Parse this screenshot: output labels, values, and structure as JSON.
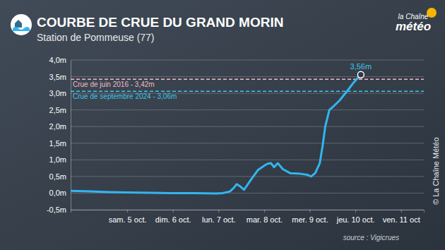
{
  "chart_data": {
    "type": "line",
    "title": "COURBE DE CRUE DU GRAND MORIN",
    "subtitle": "Station de Pommeuse (77)",
    "logo": [
      "la Chaîne",
      "météo"
    ],
    "source": "source : Vigicrues",
    "credit": "© La Chaîne Météo",
    "color": "#33b5f0",
    "grid": true,
    "x": [
      3.76,
      4.2,
      4.6,
      5.0,
      5.5,
      6.0,
      6.5,
      6.94,
      7.09,
      7.25,
      7.33,
      7.4,
      7.48,
      7.56,
      7.71,
      7.87,
      8.0,
      8.07,
      8.15,
      8.22,
      8.3,
      8.41,
      8.57,
      8.8,
      8.95,
      9.03,
      9.12,
      9.22,
      9.28,
      9.34,
      9.43,
      9.53,
      9.65,
      9.81,
      9.96,
      10.12
    ],
    "values": [
      0.07,
      0.05,
      0.03,
      0.02,
      0.01,
      0.0,
      0.0,
      -0.01,
      0.0,
      0.05,
      0.15,
      0.27,
      0.2,
      0.1,
      0.4,
      0.7,
      0.82,
      0.88,
      0.9,
      0.78,
      0.9,
      0.72,
      0.6,
      0.58,
      0.55,
      0.5,
      0.6,
      0.9,
      1.4,
      2.0,
      2.5,
      2.62,
      2.78,
      3.05,
      3.32,
      3.56
    ],
    "xlim": [
      3.76,
      11.5
    ],
    "xticks": [
      {
        "value": 5,
        "label": "sam. 5 oct."
      },
      {
        "value": 6,
        "label": "dim. 6 oct."
      },
      {
        "value": 7,
        "label": "lun. 7 oct."
      },
      {
        "value": 8,
        "label": "mar. 8 oct."
      },
      {
        "value": 9,
        "label": "mer. 9 oct."
      },
      {
        "value": 10,
        "label": "jeu. 10 oct."
      },
      {
        "value": 11,
        "label": "ven. 11 oct"
      }
    ],
    "ylim": [
      -0.5,
      4.0
    ],
    "yticks": [
      {
        "value": -0.5,
        "label": "-0,5m"
      },
      {
        "value": 0,
        "label": "0,0m"
      },
      {
        "value": 0.5,
        "label": "0,5m"
      },
      {
        "value": 1.0,
        "label": "1,0m"
      },
      {
        "value": 1.5,
        "label": "1,5m"
      },
      {
        "value": 2.0,
        "label": "2,0m"
      },
      {
        "value": 2.5,
        "label": "2,5m"
      },
      {
        "value": 3.0,
        "label": "3,0m"
      },
      {
        "value": 3.5,
        "label": "3,5m"
      },
      {
        "value": 4.0,
        "label": "4,0m"
      }
    ],
    "reference_lines": [
      {
        "value": 3.42,
        "label": "Crue de juin 2016 - 3,42m",
        "color": "#f2b8c6"
      },
      {
        "value": 3.06,
        "label": "Crue de septembre 2024 - 3,06m",
        "color": "#3fc6e8"
      }
    ],
    "annotations": [
      {
        "x": 10.12,
        "value": 3.56,
        "label": "3,56m"
      }
    ]
  }
}
